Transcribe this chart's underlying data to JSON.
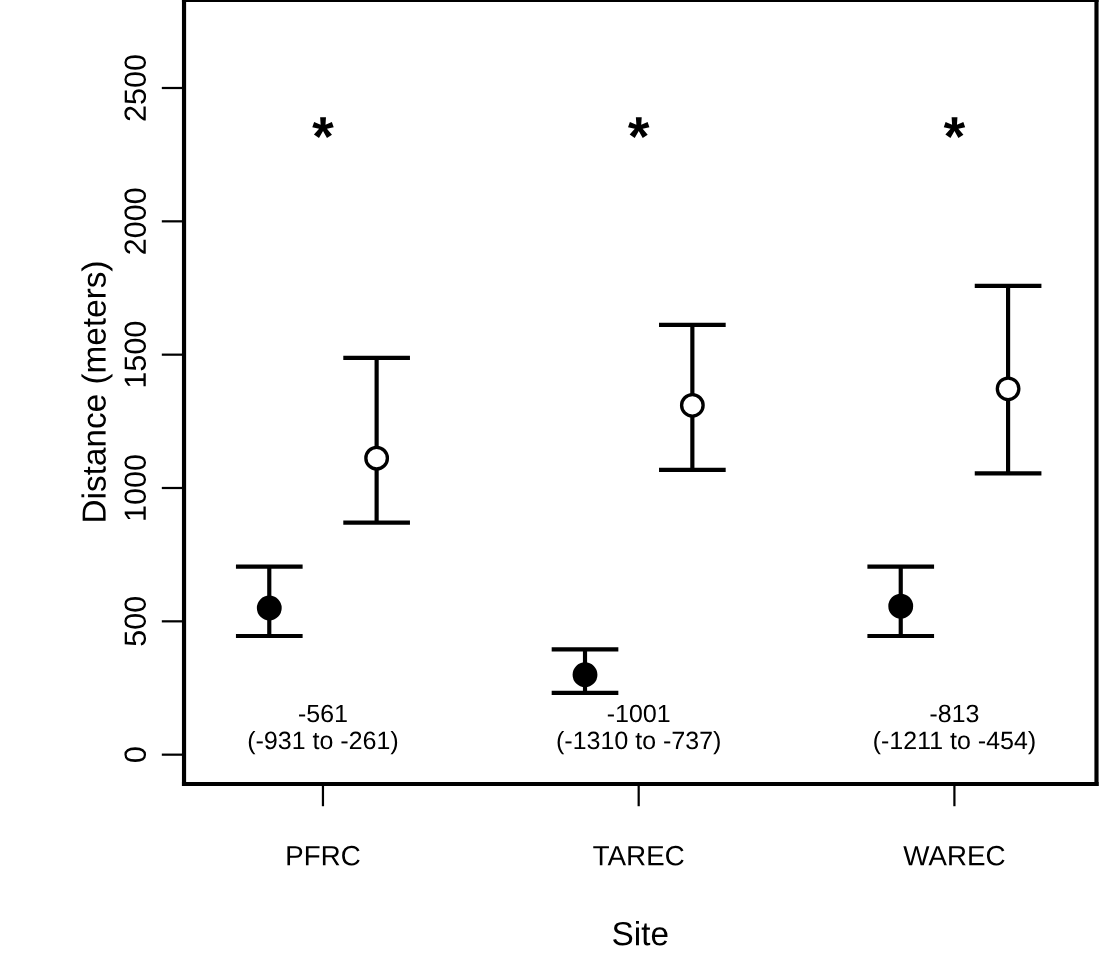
{
  "chart_data": {
    "type": "scatter",
    "xlabel": "Site",
    "ylabel": "Distance (meters)",
    "categories": [
      "PFRC",
      "TAREC",
      "WAREC"
    ],
    "series": [
      {
        "color": "#000000",
        "values": [
          550,
          300,
          557
        ],
        "errors": [
          [
            445,
            705
          ],
          [
            232,
            395
          ],
          [
            445,
            705
          ]
        ]
      },
      {
        "color": "#ffffff",
        "values": [
          1112,
          1310,
          1372
        ],
        "errors": [
          [
            870,
            1488
          ],
          [
            1068,
            1612
          ],
          [
            1055,
            1758
          ]
        ]
      }
    ],
    "ylim": [
      -110,
      2830
    ],
    "yticks": [
      0,
      500,
      1000,
      1500,
      2000,
      2500
    ],
    "marker": "circle",
    "grid": false,
    "legend": false,
    "annotations": [
      "*",
      "*",
      "*",
      "-561\n(-931 to -261)",
      "-1001\n(-1310 to -737)",
      "-813\n(-1211 to -454)"
    ]
  }
}
